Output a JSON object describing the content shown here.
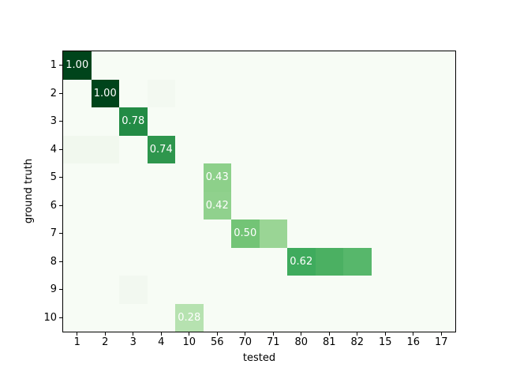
{
  "figure": {
    "background": "#ffffff",
    "plot_background": "#f7fcf5",
    "frame_color": "#000000",
    "text_color": "#000000",
    "annotation_text_color": "#ffffff"
  },
  "chart_data": {
    "type": "heatmap",
    "title": "",
    "xlabel": "tested",
    "ylabel": "ground truth",
    "colormap": "Greens",
    "value_range": [
      0,
      1
    ],
    "grid": false,
    "legend": "none",
    "x_categories": [
      "1",
      "2",
      "3",
      "4",
      "10",
      "56",
      "70",
      "71",
      "80",
      "81",
      "82",
      "15",
      "16",
      "17"
    ],
    "y_categories": [
      "1",
      "2",
      "3",
      "4",
      "5",
      "6",
      "7",
      "8",
      "9",
      "10"
    ],
    "cells": [
      {
        "row": "1",
        "col": "1",
        "value": 1.0,
        "label": "1.00",
        "color": "#00441b"
      },
      {
        "row": "2",
        "col": "2",
        "value": 1.0,
        "label": "1.00",
        "color": "#00441b"
      },
      {
        "row": "2",
        "col": "4",
        "value": 0.02,
        "label": "",
        "color": "#f3f9f1"
      },
      {
        "row": "3",
        "col": "3",
        "value": 0.78,
        "label": "0.78",
        "color": "#238b45"
      },
      {
        "row": "4",
        "col": "1",
        "value": 0.03,
        "label": "",
        "color": "#f1f8ee"
      },
      {
        "row": "4",
        "col": "2",
        "value": 0.03,
        "label": "",
        "color": "#f1f8ee"
      },
      {
        "row": "4",
        "col": "4",
        "value": 0.74,
        "label": "0.74",
        "color": "#2e964d"
      },
      {
        "row": "5",
        "col": "56",
        "value": 0.43,
        "label": "0.43",
        "color": "#8dd08a"
      },
      {
        "row": "6",
        "col": "56",
        "value": 0.42,
        "label": "0.42",
        "color": "#90d18d"
      },
      {
        "row": "7",
        "col": "70",
        "value": 0.5,
        "label": "0.50",
        "color": "#73c476"
      },
      {
        "row": "7",
        "col": "71",
        "value": 0.37,
        "label": "",
        "color": "#9ad595"
      },
      {
        "row": "8",
        "col": "80",
        "value": 0.62,
        "label": "0.62",
        "color": "#3fab5d"
      },
      {
        "row": "8",
        "col": "81",
        "value": 0.58,
        "label": "",
        "color": "#4bb062"
      },
      {
        "row": "8",
        "col": "82",
        "value": 0.53,
        "label": "",
        "color": "#57b76b"
      },
      {
        "row": "9",
        "col": "3",
        "value": 0.02,
        "label": "",
        "color": "#f2f8f0"
      },
      {
        "row": "10",
        "col": "10",
        "value": 0.28,
        "label": "0.28",
        "color": "#b6e2b0"
      }
    ]
  }
}
